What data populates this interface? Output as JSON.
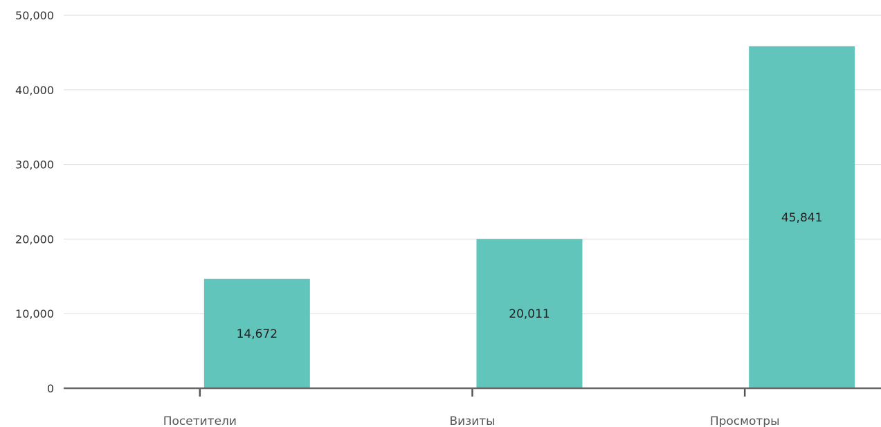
{
  "chart_data": {
    "type": "bar",
    "title": "",
    "xlabel": "",
    "ylabel": "",
    "categories": [
      "Посетители",
      "Визиты",
      "Просмотры"
    ],
    "values": [
      14672,
      20011,
      45841
    ],
    "value_labels": [
      "14,672",
      "20,011",
      "45,841"
    ],
    "ylim": [
      0,
      50000
    ],
    "y_ticks": [
      0,
      10000,
      20000,
      30000,
      40000,
      50000
    ],
    "y_tick_labels": [
      "0",
      "10,000",
      "20,000",
      "30,000",
      "40,000",
      "50,000"
    ],
    "grid": true,
    "legend": "none",
    "colors": {
      "bar": "#62c5bb",
      "grid": "#dddddd",
      "axis": "#666666"
    }
  }
}
